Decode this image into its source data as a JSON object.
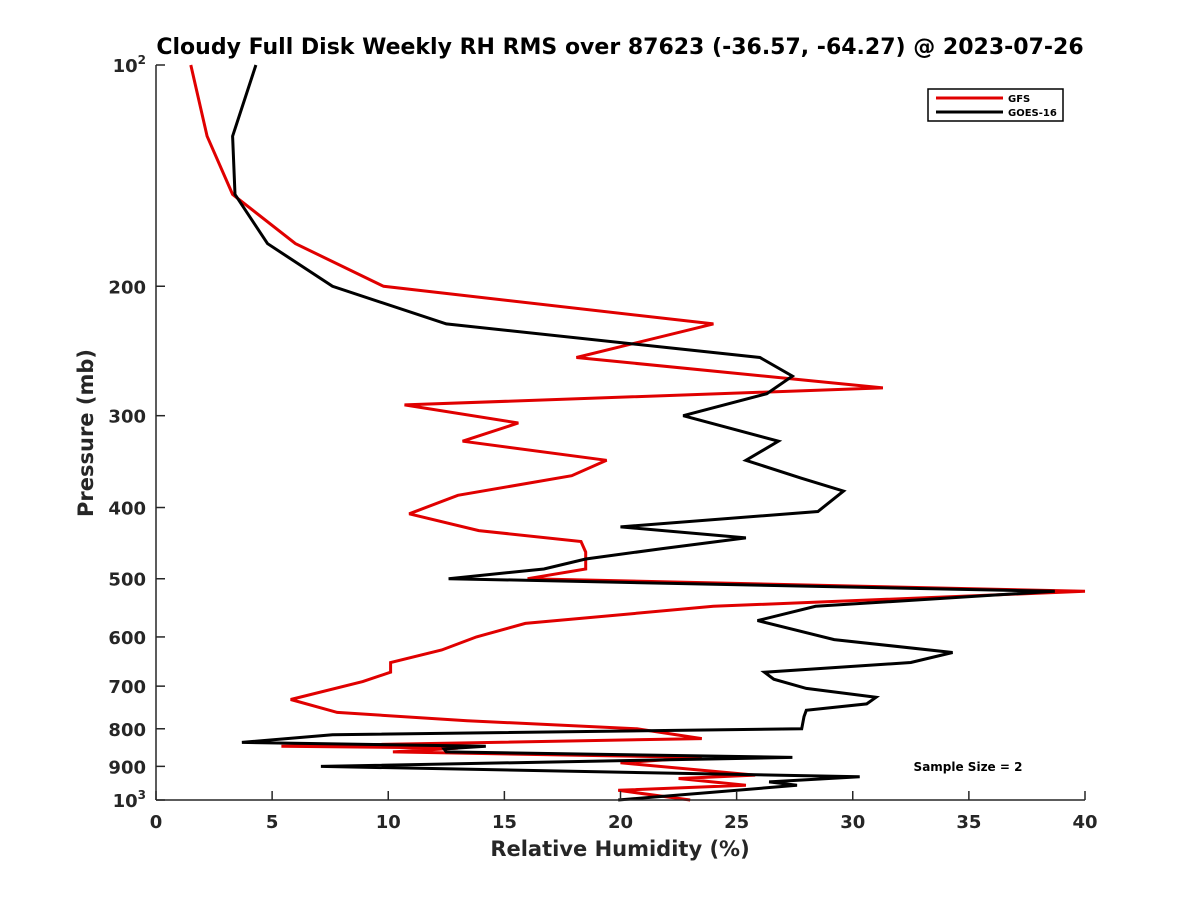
{
  "chart_data": {
    "type": "line",
    "title": "Cloudy Full Disk Weekly RH RMS over 87623 (-36.57, -64.27) @ 2023-07-26",
    "xlabel": "Relative Humidity (%)",
    "ylabel": "Pressure (mb)",
    "xlim": [
      0,
      40
    ],
    "ylim": [
      100,
      1000
    ],
    "y_scale": "log",
    "y_reversed": true,
    "grid": false,
    "legend_position": "top-right",
    "x_ticks": [
      "0",
      "5",
      "10",
      "15",
      "20",
      "25",
      "30",
      "35",
      "40"
    ],
    "y_ticks": [
      {
        "value": 100,
        "base": "10",
        "exp": "2"
      },
      {
        "value": 200,
        "label": "200"
      },
      {
        "value": 300,
        "label": "300"
      },
      {
        "value": 400,
        "label": "400"
      },
      {
        "value": 500,
        "label": "500"
      },
      {
        "value": 600,
        "label": "600"
      },
      {
        "value": 700,
        "label": "700"
      },
      {
        "value": 800,
        "label": "800"
      },
      {
        "value": 900,
        "label": "900"
      },
      {
        "value": 1000,
        "base": "10",
        "exp": "3"
      }
    ],
    "series": [
      {
        "name": "GFS",
        "color": "#e00000",
        "points": [
          [
            1.5,
            100
          ],
          [
            2.2,
            125
          ],
          [
            3.3,
            150
          ],
          [
            6.0,
            175
          ],
          [
            9.8,
            200
          ],
          [
            24.0,
            225
          ],
          [
            18.1,
            250
          ],
          [
            31.3,
            275
          ],
          [
            10.7,
            290
          ],
          [
            15.6,
            307
          ],
          [
            13.2,
            325
          ],
          [
            19.4,
            345
          ],
          [
            17.9,
            362
          ],
          [
            13.0,
            385
          ],
          [
            10.9,
            408
          ],
          [
            13.9,
            430
          ],
          [
            18.3,
            445
          ],
          [
            18.5,
            460
          ],
          [
            18.5,
            485
          ],
          [
            16.0,
            500
          ],
          [
            40.0,
            520
          ],
          [
            24.0,
            545
          ],
          [
            15.9,
            575
          ],
          [
            13.8,
            600
          ],
          [
            12.3,
            625
          ],
          [
            10.1,
            650
          ],
          [
            10.1,
            670
          ],
          [
            8.9,
            690
          ],
          [
            5.8,
            730
          ],
          [
            7.8,
            760
          ],
          [
            13.4,
            780
          ],
          [
            20.7,
            800
          ],
          [
            23.5,
            825
          ],
          [
            5.4,
            845
          ],
          [
            13.0,
            850
          ],
          [
            10.2,
            860
          ],
          [
            23.5,
            875
          ],
          [
            20.0,
            890
          ],
          [
            25.8,
            925
          ],
          [
            22.5,
            935
          ],
          [
            25.4,
            955
          ],
          [
            19.9,
            970
          ],
          [
            23.0,
            1000
          ]
        ]
      },
      {
        "name": "GOES-16",
        "color": "#000000",
        "points": [
          [
            4.3,
            100
          ],
          [
            3.3,
            125
          ],
          [
            3.4,
            150
          ],
          [
            4.8,
            175
          ],
          [
            7.6,
            200
          ],
          [
            12.5,
            225
          ],
          [
            26.0,
            250
          ],
          [
            27.4,
            265
          ],
          [
            26.3,
            280
          ],
          [
            22.7,
            300
          ],
          [
            26.8,
            325
          ],
          [
            25.4,
            345
          ],
          [
            27.8,
            365
          ],
          [
            29.6,
            380
          ],
          [
            28.5,
            405
          ],
          [
            20.0,
            425
          ],
          [
            25.4,
            440
          ],
          [
            21.8,
            455
          ],
          [
            18.5,
            470
          ],
          [
            16.7,
            485
          ],
          [
            12.6,
            500
          ],
          [
            38.7,
            520
          ],
          [
            28.4,
            545
          ],
          [
            25.9,
            570
          ],
          [
            29.2,
            605
          ],
          [
            34.3,
            630
          ],
          [
            32.5,
            650
          ],
          [
            26.2,
            670
          ],
          [
            26.6,
            685
          ],
          [
            28.0,
            705
          ],
          [
            31.0,
            725
          ],
          [
            30.6,
            740
          ],
          [
            28.0,
            755
          ],
          [
            27.9,
            770
          ],
          [
            27.8,
            800
          ],
          [
            7.6,
            815
          ],
          [
            3.7,
            835
          ],
          [
            14.2,
            845
          ],
          [
            12.4,
            852
          ],
          [
            12.5,
            860
          ],
          [
            27.4,
            875
          ],
          [
            7.1,
            900
          ],
          [
            30.3,
            930
          ],
          [
            26.4,
            945
          ],
          [
            27.6,
            955
          ],
          [
            19.9,
            1000
          ]
        ]
      }
    ],
    "annotation": "Sample Size = 2"
  }
}
